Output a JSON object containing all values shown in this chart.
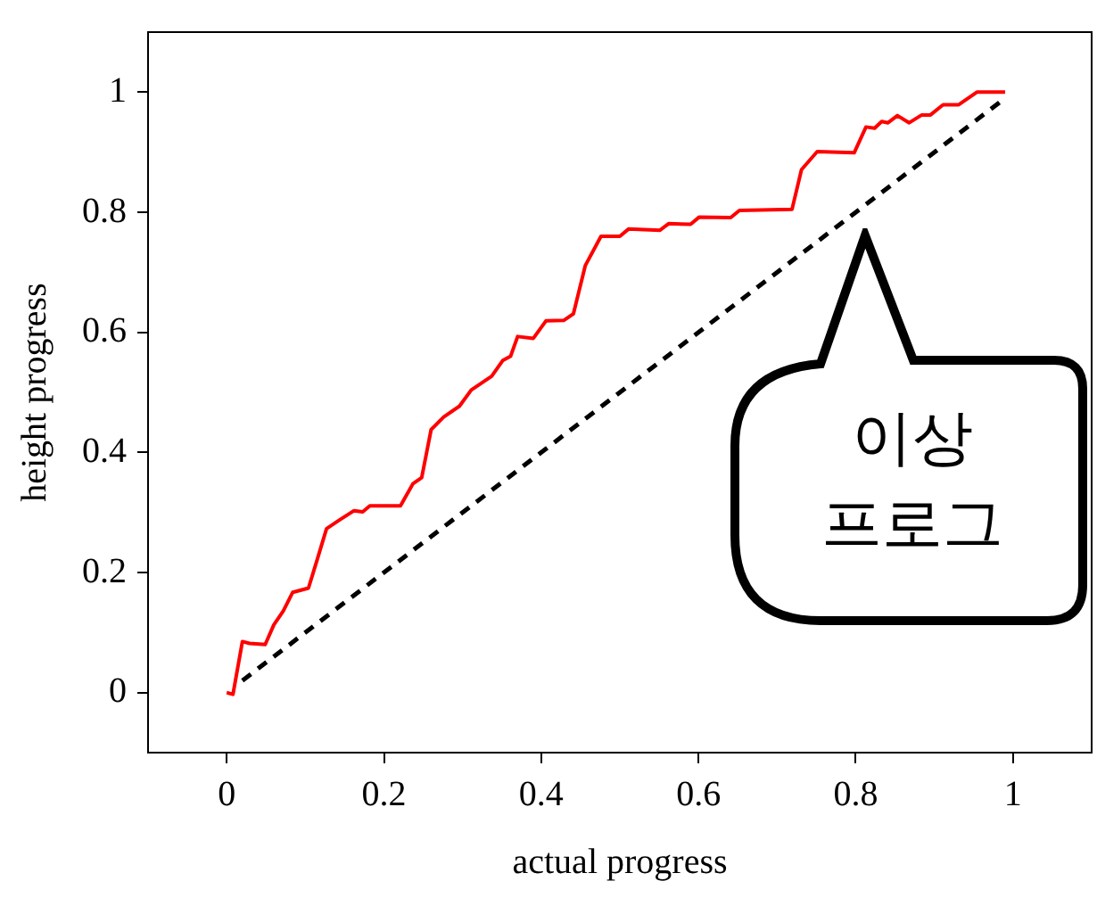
{
  "chart_data": {
    "type": "line",
    "xlabel": "actual progress",
    "ylabel": "height progress",
    "xlim": [
      -0.1,
      1.1
    ],
    "ylim": [
      -0.1,
      1.1
    ],
    "xticks": [
      0,
      0.2,
      0.4,
      0.6,
      0.8,
      1
    ],
    "yticks": [
      0,
      0.2,
      0.4,
      0.6,
      0.8,
      1
    ],
    "grid": false,
    "legend": false,
    "marker": "none",
    "annotations": [
      "이상",
      "프로그"
    ],
    "series": [
      {
        "color": "#ff0000",
        "line_style": "solid",
        "x": [
          0,
          0.008,
          0.02,
          0.029,
          0.049,
          0.06,
          0.072,
          0.084,
          0.104,
          0.115,
          0.127,
          0.143,
          0.162,
          0.173,
          0.182,
          0.221,
          0.237,
          0.248,
          0.26,
          0.276,
          0.296,
          0.311,
          0.337,
          0.351,
          0.361,
          0.37,
          0.39,
          0.406,
          0.429,
          0.441,
          0.456,
          0.476,
          0.5,
          0.511,
          0.551,
          0.562,
          0.59,
          0.601,
          0.641,
          0.652,
          0.719,
          0.731,
          0.751,
          0.798,
          0.813,
          0.824,
          0.833,
          0.841,
          0.853,
          0.868,
          0.884,
          0.895,
          0.911,
          0.931,
          0.954,
          0.99
        ],
        "values": [
          0,
          -0.003,
          0.085,
          0.082,
          0.08,
          0.113,
          0.136,
          0.167,
          0.174,
          0.221,
          0.273,
          0.287,
          0.303,
          0.301,
          0.311,
          0.311,
          0.348,
          0.358,
          0.438,
          0.459,
          0.477,
          0.504,
          0.527,
          0.553,
          0.56,
          0.593,
          0.59,
          0.619,
          0.62,
          0.631,
          0.711,
          0.76,
          0.76,
          0.772,
          0.77,
          0.781,
          0.78,
          0.792,
          0.791,
          0.803,
          0.805,
          0.871,
          0.901,
          0.899,
          0.942,
          0.94,
          0.951,
          0.949,
          0.961,
          0.949,
          0.962,
          0.962,
          0.979,
          0.979,
          1,
          1
        ]
      },
      {
        "color": "#000000",
        "line_style": "dashed",
        "x": [
          0.02,
          0.99
        ],
        "values": [
          0.02,
          0.99
        ]
      }
    ]
  }
}
